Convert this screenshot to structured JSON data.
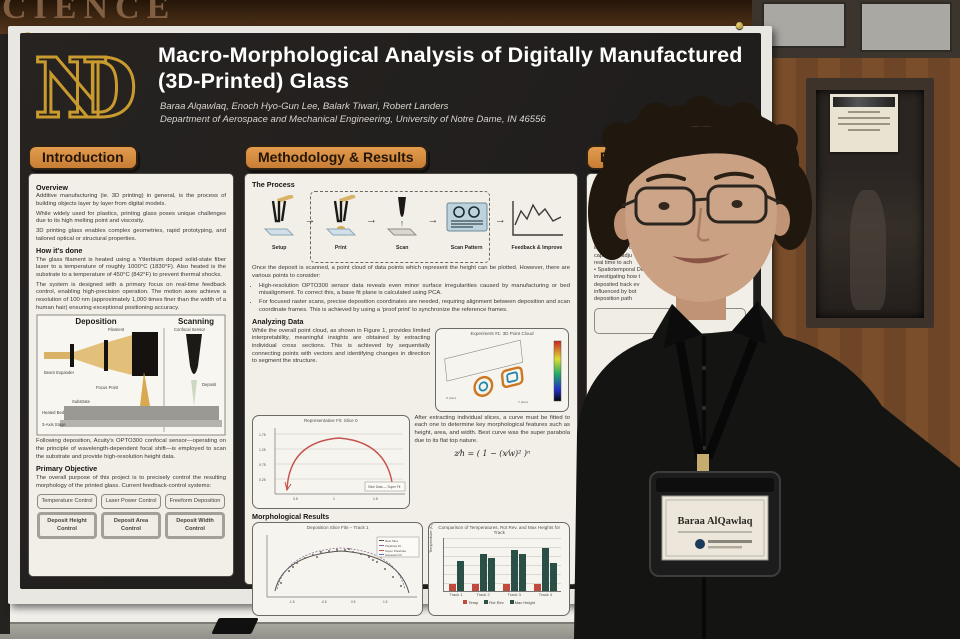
{
  "colors": {
    "accent_orange": "#d18a3e",
    "poster_bg": "#211f1d",
    "gold": "#c99a2e",
    "card": "#f2efe8",
    "bar_red": "#bf4a3e",
    "bar_teal": "#2a4f46"
  },
  "scene": {
    "wall_text": "CIENCE",
    "badge_name": "Baraa AlQawlaq"
  },
  "poster": {
    "logo_text": "ND",
    "title_line1": "Macro-Morphological Analysis of Digitally Manufactured",
    "title_line2": "(3D-Printed) Glass",
    "authors": "Baraa Alqawlaq, Enoch Hyo-Gun Lee, Balark Tiwari, Robert Landers",
    "affiliation": "Department of Aerospace and Mechanical Engineering, University of Notre Dame, IN 46556"
  },
  "intro": {
    "header": "Introduction",
    "overview_heading": "Overview",
    "overview_p1": "Additive manufacturing (ie. 3D printing) in general, is the process of building objects layer by layer from digital models.",
    "overview_p2": "While widely used for plastics, printing glass poses unique challenges due to its high melting point and viscosity.",
    "overview_p3": "3D printing glass enables complex geometries, rapid prototyping, and tailored optical or structural properties.",
    "how_heading": "How it's done",
    "how_p1": "The glass filament is heated using a Ytterbium doped solid-state fiber laser to a temperature of roughly 1000°C (1830°F). Also heated is the substrate to a temperature of 450°C (842°F) to prevent thermal shocks.",
    "how_p2": "The system is designed with a primary focus on real-time feedback control, enabling high-precision operation. The motion axes achieve a resolution of 100 nm (approximately 1,000 times finer than the width of a human hair) ensuring exceptional positioning accuracy.",
    "diagram": {
      "left_title": "Deposition",
      "right_title": "Scanning",
      "labels": {
        "filament": "Filament",
        "beam_expander": "Beam Expander",
        "focus_point": "Focus Point",
        "substrate": "Substrate",
        "heated_bed": "Heated Bed",
        "stage": "3-Axis Stage",
        "confocal": "Confocal Sensor",
        "deposit": "Deposit"
      }
    },
    "following_p": "Following deposition, Acuity's OPTO300 confocal sensor—operating on the principle of wavelength-dependent focal shift—is employed to scan the substrate and provide high-resolution height data.",
    "primary_heading": "Primary Objective",
    "primary_p": "The overall purpose of this project is to precisely control the resulting morphology of the printed glass. Current feedback-control systems:",
    "boxes": [
      "Temperature Control",
      "Laser Power Control",
      "Freeform Deposition",
      "Deposit Height Control",
      "Deposit Area Control",
      "Deposit Width Control"
    ]
  },
  "method": {
    "header": "Methodology & Results",
    "process_heading": "The Process",
    "steps": [
      "Setup",
      "Print",
      "Scan",
      "Scan Pattern",
      "Feedback & Improve"
    ],
    "p1": "Once the deposit is scanned, a point cloud of data points which represent the height can be plotted. However, there are various points to consider:",
    "bullet1": "High-resolution OPTO300 sensor data reveals even minor surface irregularities caused by manufacturing or bed misalignment. To correct this, a base fit plane is calculated using PCA.",
    "bullet2": "For focused raster scans, precise deposition coordinates are needed, requiring alignment between deposition and scan coordinate frames. This is achieved by using a 'proof print' to synchronize the reference frames.",
    "analyzing_heading": "Analyzing Data",
    "analyzing_p": "While the overall point cloud, as shown in Figure 1, provides limited interpretability, meaningful insights are obtained by extracting individual cross sections. This is achieved by sequentially connecting points with vectors and identifying changes in direction to segment the structure.",
    "fitting_p": "After extracting individual slices, a curve must be fitted to each one to determine key morphological features such as height, area, and width. Best curve was the super parabola due to its flat top nature.",
    "formula": "z⁄h = ( 1 − (x⁄w)² )ⁿ",
    "morph_heading": "Morphological Results"
  },
  "figures": {
    "point_cloud": {
      "title": "Experiment #1: 3D Point Cloud"
    },
    "slice_fit": {
      "title": "Representative Fit: Slice 0",
      "legend": "Slice Data — Super Fit"
    },
    "track_fit": {
      "title": "Deposition Slice Fits – Track 1",
      "legend": [
        "Raw Slice",
        "Parabola Fit",
        "Super Parabola",
        "Gaussian Fit"
      ]
    },
    "bar_chart": {
      "type": "bar",
      "title": "Comparison of Temperatures, Rot Rev, and Max Heights for Track",
      "ylabel": "Temperature (C)",
      "categories": [
        "Track 1",
        "Track 2",
        "Track 3",
        "Track 4"
      ],
      "series": [
        {
          "name": "Temp",
          "color": "#bf4a3e",
          "values": [
            13,
            13,
            13,
            13
          ]
        },
        {
          "name": "Rot Rev",
          "color": "#2a4f46",
          "values": [
            56,
            70,
            77,
            81
          ]
        },
        {
          "name": "Max Height",
          "color": "#2a4f46",
          "values": [
            0,
            62,
            70,
            52
          ]
        }
      ]
    }
  },
  "future": {
    "header": "Future Work",
    "intro_line": "This research promising di",
    "text": "This research\npromising di\n• Experime\n   Developi\n   morpholo\n   analysis to key\n   deposition te\n   and pull out\n• Real-Time Mor\n   implementing th\n   capable of adju\n   real time to ach\n• Spatiotemporal De\n   investigating how t\n   deposited track ev\n   influenced by bot\n   deposition path"
  }
}
